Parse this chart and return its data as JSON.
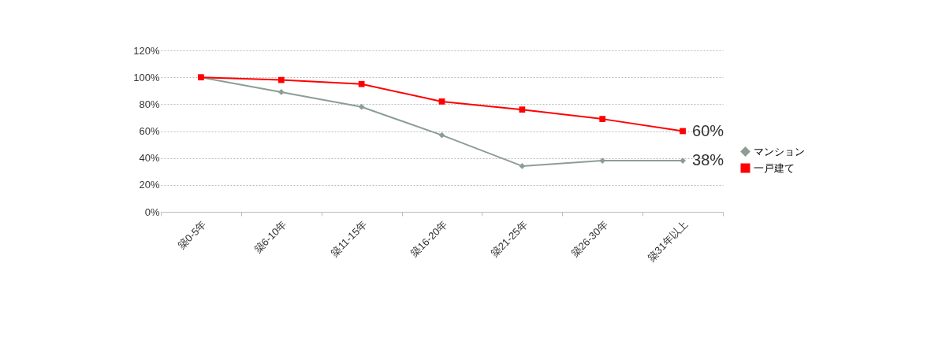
{
  "chart_data": {
    "type": "line",
    "categories": [
      "築0-5年",
      "築6-10年",
      "築11-15年",
      "築16-20年",
      "築21-25年",
      "築26-30年",
      "築31年以上"
    ],
    "series": [
      {
        "name": "マンション",
        "color": "#8c9e94",
        "marker": "diamond",
        "values": [
          100,
          89,
          78,
          57,
          34,
          38,
          38
        ]
      },
      {
        "name": "一戸建て",
        "color": "#ff0000",
        "marker": "square",
        "values": [
          100,
          98,
          95,
          82,
          76,
          69,
          60
        ]
      }
    ],
    "ylim": [
      0,
      120
    ],
    "yticks": [
      {
        "value": 0,
        "label": "0%"
      },
      {
        "value": 20,
        "label": "20%"
      },
      {
        "value": 40,
        "label": "40%"
      },
      {
        "value": 60,
        "label": "60%"
      },
      {
        "value": 80,
        "label": "80%"
      },
      {
        "value": 100,
        "label": "100%"
      },
      {
        "value": 120,
        "label": "120%"
      }
    ],
    "grid": "y",
    "legend": "right",
    "annotations": [
      {
        "text": "60%",
        "x": "築31年以上",
        "y": 60
      },
      {
        "text": "38%",
        "x": "築31年以上",
        "y": 38
      }
    ]
  }
}
